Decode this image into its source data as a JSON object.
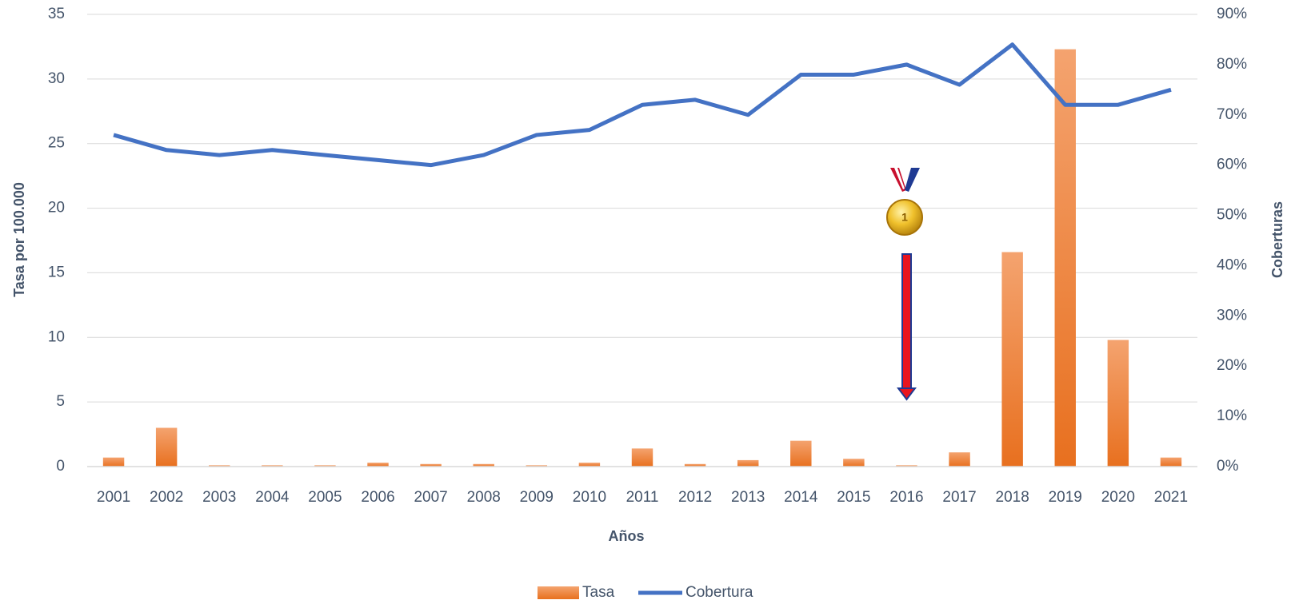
{
  "chart_data": {
    "type": "bar",
    "x_label": "Años",
    "y_label": "Tasa por 100.000",
    "y2_label": "Coberturas",
    "categories": [
      "2001",
      "2002",
      "2003",
      "2004",
      "2005",
      "2006",
      "2007",
      "2008",
      "2009",
      "2010",
      "2011",
      "2012",
      "2013",
      "2014",
      "2015",
      "2016",
      "2017",
      "2018",
      "2019",
      "2020",
      "2021"
    ],
    "series": [
      {
        "name": "Tasa",
        "type": "bar",
        "color": "#ED7D31",
        "values": [
          0.7,
          3.0,
          0.1,
          0.1,
          0.1,
          0.3,
          0.2,
          0.2,
          0.1,
          0.3,
          1.4,
          0.2,
          0.5,
          2.0,
          0.6,
          0.1,
          1.1,
          16.6,
          32.3,
          9.8,
          0.7
        ]
      },
      {
        "name": "Cobertura",
        "type": "line",
        "axis": "y2",
        "color": "#4472C4",
        "values": [
          66,
          63,
          62,
          63,
          62,
          61,
          60,
          62,
          66,
          67,
          72,
          73,
          70,
          78,
          78,
          80,
          76,
          84,
          72,
          72,
          75
        ]
      }
    ],
    "ylim": [
      0,
      35
    ],
    "yticks": [
      0,
      5,
      10,
      15,
      20,
      25,
      30,
      35
    ],
    "y2lim": [
      0,
      90
    ],
    "y2ticks": [
      {
        "value": 0,
        "label": "0%"
      },
      {
        "value": 10,
        "label": "10%"
      },
      {
        "value": 20,
        "label": "20%"
      },
      {
        "value": 30,
        "label": "30%"
      },
      {
        "value": 40,
        "label": "40%"
      },
      {
        "value": 50,
        "label": "50%"
      },
      {
        "value": 60,
        "label": "60%"
      },
      {
        "value": 70,
        "label": "70%"
      },
      {
        "value": 80,
        "label": "80%"
      },
      {
        "value": 90,
        "label": "90%"
      }
    ],
    "grid": true,
    "legend": "bottom"
  }
}
